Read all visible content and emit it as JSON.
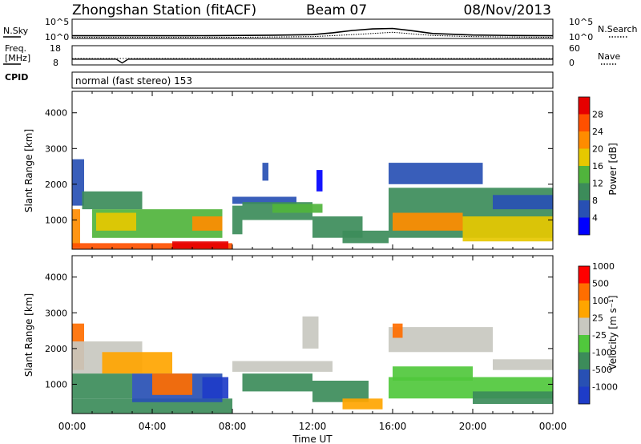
{
  "header": {
    "station": "Zhongshan Station (fitACF)",
    "beam": "Beam 07",
    "date": "08/Nov/2013"
  },
  "noise_panel": {
    "left_label": "N.Sky",
    "right_label": "N.Search",
    "left_ticks": [
      "10^5",
      "10^0"
    ],
    "right_ticks": [
      "10^5",
      "10^0"
    ]
  },
  "freq_panel": {
    "left_label_1": "Freq.",
    "left_label_2": "[MHz]",
    "right_label": "Nave",
    "left_ticks": [
      "18",
      "8"
    ],
    "right_ticks": [
      "60",
      "0"
    ]
  },
  "cpid": {
    "label": "CPID",
    "mode": "normal (fast stereo) 153"
  },
  "time_axis": {
    "label": "Time UT",
    "ticks": [
      "00:00",
      "04:00",
      "08:00",
      "12:00",
      "16:00",
      "20:00",
      "00:00"
    ]
  },
  "power_colorbar": {
    "label": "Power [dB]",
    "ticks": [
      "4",
      "8",
      "12",
      "16",
      "20",
      "24",
      "28"
    ],
    "colors": [
      "#0000ff",
      "#2850b4",
      "#3c8c5a",
      "#50b43c",
      "#e6c800",
      "#ff8c00",
      "#ff5000",
      "#e60000"
    ]
  },
  "velocity_colorbar": {
    "label": "Velocity [m s⁻¹]",
    "ticks": [
      "1000",
      "500",
      "100",
      "25",
      "-25",
      "-100",
      "-500",
      "-1000"
    ],
    "colors": [
      "#1e3cc8",
      "#2850b4",
      "#3c8c5a",
      "#50c83c",
      "#c8c8c0",
      "#ffa500",
      "#ff6e00",
      "#ff0000"
    ]
  },
  "chart_data": [
    {
      "type": "line",
      "title": "N.Sky / N.Search",
      "x_range_hours": [
        0,
        24
      ],
      "y_scale": "log",
      "series": [
        {
          "name": "N.Sky",
          "x": [
            0,
            2,
            4,
            6,
            8,
            10,
            12,
            13,
            14,
            15,
            16,
            17,
            18,
            20,
            22,
            24
          ],
          "y": [
            5,
            5,
            5,
            5,
            6,
            7,
            10,
            30,
            120,
            300,
            400,
            100,
            20,
            8,
            6,
            5
          ]
        },
        {
          "name": "N.Search",
          "x": [
            0,
            4,
            8,
            12,
            14,
            16,
            18,
            20,
            24
          ],
          "y": [
            2,
            2,
            2,
            3,
            10,
            40,
            6,
            3,
            2
          ]
        }
      ]
    },
    {
      "type": "line",
      "title": "Freq / Nave",
      "x_range_hours": [
        0,
        24
      ],
      "series": [
        {
          "name": "Freq",
          "x": [
            0,
            2.2,
            2.5,
            2.8,
            24
          ],
          "y": [
            11,
            11,
            9,
            11,
            11
          ]
        },
        {
          "name": "Nave",
          "x": [
            0,
            24
          ],
          "y": [
            20,
            20
          ]
        }
      ]
    },
    {
      "type": "heatmap",
      "title": "Power",
      "x_range_hours": [
        0,
        24
      ],
      "y_label": "Slant Range [km]",
      "y_range_km": [
        180,
        4600
      ],
      "y_ticks": [
        "1000",
        "2000",
        "3000",
        "4000"
      ],
      "blocks": [
        {
          "t0": 0.0,
          "t1": 0.6,
          "r0": 1400,
          "r1": 2700,
          "level": 1
        },
        {
          "t0": 0.0,
          "t1": 0.4,
          "r0": 250,
          "r1": 1300,
          "level": 5
        },
        {
          "t0": 0.0,
          "t1": 8.0,
          "r0": 180,
          "r1": 350,
          "level": 6
        },
        {
          "t0": 1.0,
          "t1": 7.5,
          "r0": 500,
          "r1": 1300,
          "level": 3
        },
        {
          "t0": 1.2,
          "t1": 3.2,
          "r0": 700,
          "r1": 1200,
          "level": 4
        },
        {
          "t0": 0.5,
          "t1": 3.5,
          "r0": 1300,
          "r1": 1800,
          "level": 2
        },
        {
          "t0": 5.0,
          "t1": 7.8,
          "r0": 200,
          "r1": 400,
          "level": 7
        },
        {
          "t0": 6.0,
          "t1": 7.5,
          "r0": 700,
          "r1": 1100,
          "level": 5
        },
        {
          "t0": 8.0,
          "t1": 11.2,
          "r0": 1450,
          "r1": 1650,
          "level": 1
        },
        {
          "t0": 8.5,
          "t1": 12.0,
          "r0": 1000,
          "r1": 1500,
          "level": 2
        },
        {
          "t0": 10.0,
          "t1": 12.5,
          "r0": 1200,
          "r1": 1450,
          "level": 3
        },
        {
          "t0": 12.0,
          "t1": 14.5,
          "r0": 500,
          "r1": 1100,
          "level": 2
        },
        {
          "t0": 13.5,
          "t1": 15.8,
          "r0": 350,
          "r1": 700,
          "level": 2
        },
        {
          "t0": 15.8,
          "t1": 20.5,
          "r0": 2000,
          "r1": 2600,
          "level": 1
        },
        {
          "t0": 15.8,
          "t1": 24.0,
          "r0": 500,
          "r1": 1900,
          "level": 2
        },
        {
          "t0": 16.0,
          "t1": 19.5,
          "r0": 700,
          "r1": 1200,
          "level": 5
        },
        {
          "t0": 19.5,
          "t1": 24.0,
          "r0": 400,
          "r1": 1100,
          "level": 4
        },
        {
          "t0": 21.0,
          "t1": 24.0,
          "r0": 1300,
          "r1": 1700,
          "level": 1
        },
        {
          "t0": 8.0,
          "t1": 8.5,
          "r0": 600,
          "r1": 1400,
          "level": 2
        },
        {
          "t0": 9.5,
          "t1": 9.8,
          "r0": 2100,
          "r1": 2600,
          "level": 1
        },
        {
          "t0": 12.2,
          "t1": 12.5,
          "r0": 1800,
          "r1": 2400,
          "level": 0
        }
      ]
    },
    {
      "type": "heatmap",
      "title": "Velocity",
      "x_range_hours": [
        0,
        24
      ],
      "y_label": "Slant Range [km]",
      "y_range_km": [
        180,
        4600
      ],
      "y_ticks": [
        "1000",
        "2000",
        "3000",
        "4000"
      ],
      "blocks": [
        {
          "t0": 0.0,
          "t1": 0.6,
          "r0": 1400,
          "r1": 2700,
          "level": 6
        },
        {
          "t0": 0.0,
          "t1": 3.5,
          "r0": 1300,
          "r1": 2200,
          "level": 4
        },
        {
          "t0": 0.0,
          "t1": 8.0,
          "r0": 180,
          "r1": 600,
          "level": 2
        },
        {
          "t0": 0.0,
          "t1": 3.0,
          "r0": 600,
          "r1": 1300,
          "level": 2
        },
        {
          "t0": 1.5,
          "t1": 5.0,
          "r0": 1300,
          "r1": 1900,
          "level": 5
        },
        {
          "t0": 3.0,
          "t1": 7.5,
          "r0": 500,
          "r1": 1300,
          "level": 1
        },
        {
          "t0": 4.0,
          "t1": 6.0,
          "r0": 700,
          "r1": 1300,
          "level": 6
        },
        {
          "t0": 6.5,
          "t1": 7.8,
          "r0": 600,
          "r1": 1200,
          "level": 0
        },
        {
          "t0": 8.0,
          "t1": 13.0,
          "r0": 1350,
          "r1": 1650,
          "level": 4
        },
        {
          "t0": 8.5,
          "t1": 12.0,
          "r0": 800,
          "r1": 1300,
          "level": 2
        },
        {
          "t0": 12.0,
          "t1": 14.8,
          "r0": 500,
          "r1": 1100,
          "level": 2
        },
        {
          "t0": 13.5,
          "t1": 15.5,
          "r0": 300,
          "r1": 600,
          "level": 5
        },
        {
          "t0": 15.8,
          "t1": 21.0,
          "r0": 1900,
          "r1": 2600,
          "level": 4
        },
        {
          "t0": 15.8,
          "t1": 24.0,
          "r0": 600,
          "r1": 1200,
          "level": 3
        },
        {
          "t0": 16.0,
          "t1": 20.0,
          "r0": 1100,
          "r1": 1500,
          "level": 3
        },
        {
          "t0": 20.0,
          "t1": 24.0,
          "r0": 450,
          "r1": 800,
          "level": 2
        },
        {
          "t0": 21.0,
          "t1": 24.0,
          "r0": 1400,
          "r1": 1700,
          "level": 4
        },
        {
          "t0": 16.0,
          "t1": 16.5,
          "r0": 2300,
          "r1": 2700,
          "level": 6
        },
        {
          "t0": 11.5,
          "t1": 12.3,
          "r0": 2000,
          "r1": 2900,
          "level": 4
        }
      ]
    }
  ]
}
